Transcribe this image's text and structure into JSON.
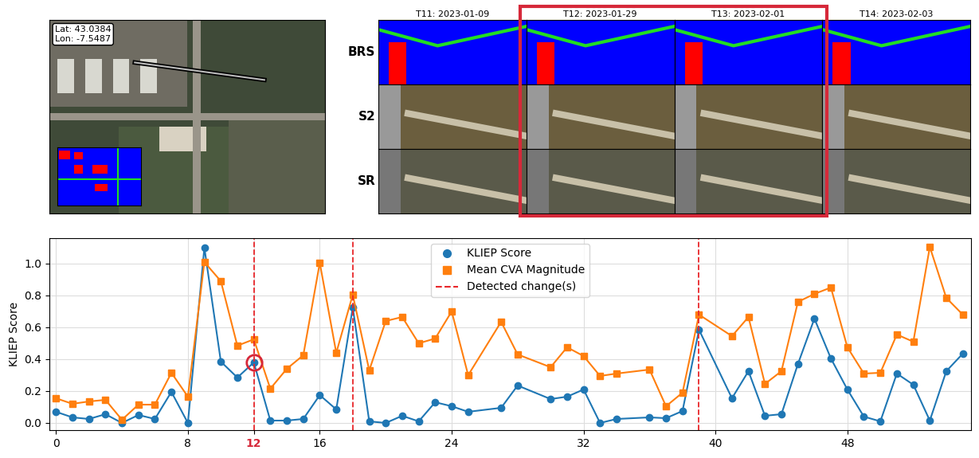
{
  "chart_data": {
    "type": "line",
    "y_label": "KLIEP Score",
    "xlim": [
      -0.4,
      55.5
    ],
    "ylim": [
      -0.045,
      1.16
    ],
    "xticks": [
      0,
      8,
      12,
      16,
      24,
      32,
      40,
      48
    ],
    "yticks": [
      {
        "value": 0,
        "label": "0.0"
      },
      0.2,
      0.4,
      0.6,
      0.8,
      {
        "value": 1,
        "label": "1.0"
      }
    ],
    "grid": true,
    "legend": "upper center",
    "series": [
      {
        "name": "KLIEP Score",
        "color": "#1f77b4",
        "marker": "circle",
        "line_style": "solid",
        "x": [
          0,
          1,
          2,
          3,
          4,
          5,
          6,
          7,
          8,
          9,
          10,
          11,
          12,
          13,
          14,
          15,
          16,
          17,
          18,
          19,
          20,
          21,
          22,
          23,
          24,
          25,
          27,
          28,
          30,
          31,
          32,
          33,
          34,
          36,
          37,
          38,
          39,
          41,
          42,
          43,
          44,
          45,
          46,
          47,
          48,
          49,
          50,
          51,
          52,
          53,
          54,
          55
        ],
        "values": [
          0.07,
          0.035,
          0.025,
          0.055,
          0.0,
          0.05,
          0.025,
          0.195,
          0.0,
          1.1,
          0.385,
          0.285,
          0.38,
          0.015,
          0.015,
          0.025,
          0.175,
          0.085,
          0.725,
          0.01,
          0.0,
          0.045,
          0.01,
          0.13,
          0.105,
          0.07,
          0.095,
          0.235,
          0.15,
          0.165,
          0.21,
          0.0,
          0.025,
          0.035,
          0.03,
          0.075,
          0.585,
          0.155,
          0.325,
          0.045,
          0.055,
          0.37,
          0.655,
          0.405,
          0.21,
          0.04,
          0.01,
          0.31,
          0.24,
          0.015,
          0.325,
          0.435
        ]
      },
      {
        "name": "Mean CVA Magnitude",
        "color": "#ff7f0e",
        "marker": "square",
        "line_style": "solid",
        "x": [
          0,
          1,
          2,
          3,
          4,
          5,
          6,
          7,
          8,
          9,
          10,
          11,
          12,
          13,
          14,
          15,
          16,
          17,
          18,
          19,
          20,
          21,
          22,
          23,
          24,
          25,
          27,
          28,
          30,
          31,
          32,
          33,
          34,
          36,
          37,
          38,
          39,
          41,
          42,
          43,
          44,
          45,
          46,
          47,
          48,
          49,
          50,
          51,
          52,
          53,
          54,
          55
        ],
        "values": [
          0.155,
          0.12,
          0.135,
          0.145,
          0.02,
          0.115,
          0.115,
          0.315,
          0.165,
          1.01,
          0.89,
          0.485,
          0.525,
          0.215,
          0.34,
          0.425,
          1.005,
          0.44,
          0.805,
          0.33,
          0.64,
          0.665,
          0.5,
          0.53,
          0.7,
          0.3,
          0.635,
          0.43,
          0.35,
          0.475,
          0.42,
          0.295,
          0.31,
          0.335,
          0.105,
          0.19,
          0.68,
          0.545,
          0.665,
          0.245,
          0.325,
          0.76,
          0.81,
          0.85,
          0.475,
          0.31,
          0.315,
          0.555,
          0.51,
          1.105,
          0.785,
          0.68
        ]
      }
    ],
    "detected_changes": {
      "name": "Detected change(s)",
      "color": "#e8262a",
      "line_style": "dashed",
      "x": [
        12,
        18,
        39
      ]
    }
  },
  "image_panels": {
    "location": "Lat: 43.0384\nLon: -7.5487",
    "rows": [
      "BRS",
      "S2",
      "SR"
    ],
    "columns": [
      "T11: 2023-01-09",
      "T12: 2023-01-29",
      "T13: 2023-02-01",
      "T14: 2023-02-03"
    ]
  }
}
